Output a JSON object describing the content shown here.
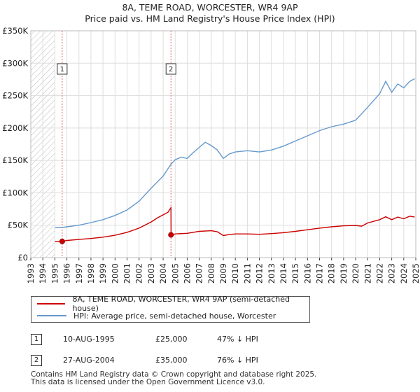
{
  "chart_data": {
    "type": "line",
    "title": "8A, TEME ROAD, WORCESTER, WR4 9AP",
    "subtitle": "Price paid vs. HM Land Registry's House Price Index (HPI)",
    "xlim": [
      1993,
      2025
    ],
    "ylim": [
      0,
      350000
    ],
    "x_ticks": [
      "1993",
      "1994",
      "1995",
      "1996",
      "1997",
      "1998",
      "1999",
      "2000",
      "2001",
      "2002",
      "2003",
      "2004",
      "2005",
      "2006",
      "2007",
      "2008",
      "2009",
      "2010",
      "2011",
      "2012",
      "2013",
      "2014",
      "2015",
      "2016",
      "2017",
      "2018",
      "2019",
      "2020",
      "2021",
      "2022",
      "2023",
      "2024",
      "2025"
    ],
    "y_ticks": [
      {
        "value": 0,
        "label": "£0"
      },
      {
        "value": 50000,
        "label": "£50K"
      },
      {
        "value": 100000,
        "label": "£100K"
      },
      {
        "value": 150000,
        "label": "£150K"
      },
      {
        "value": 200000,
        "label": "£200K"
      },
      {
        "value": 250000,
        "label": "£250K"
      },
      {
        "value": 300000,
        "label": "£300K"
      },
      {
        "value": 350000,
        "label": "£350K"
      }
    ],
    "hatched_until": 1995.0,
    "series": [
      {
        "name": "8A, TEME ROAD, WORCESTER, WR4 9AP (semi-detached house)",
        "color": "#cc0000",
        "x": [
          1995.0,
          1995.61,
          1996.0,
          1997.0,
          1998.0,
          1999.0,
          2000.0,
          2001.0,
          2002.0,
          2003.0,
          2003.5,
          2004.0,
          2004.4,
          2004.65,
          2004.66,
          2005.0,
          2006.0,
          2007.0,
          2008.0,
          2008.5,
          2009.0,
          2009.5,
          2010.0,
          2011.0,
          2012.0,
          2013.0,
          2014.0,
          2015.0,
          2016.0,
          2017.0,
          2018.0,
          2019.0,
          2020.0,
          2020.5,
          2021.0,
          2022.0,
          2022.5,
          2023.0,
          2023.5,
          2024.0,
          2024.5,
          2024.9
        ],
        "values": [
          25000,
          25000,
          26500,
          28000,
          29500,
          31500,
          34500,
          39000,
          45500,
          55000,
          61000,
          66000,
          70000,
          77000,
          35000,
          36500,
          37500,
          40500,
          41500,
          40000,
          34000,
          35500,
          36500,
          36500,
          36000,
          37000,
          38500,
          40500,
          43000,
          45500,
          47500,
          49000,
          49500,
          48500,
          53500,
          58500,
          63000,
          58500,
          62500,
          60000,
          64000,
          62500
        ]
      },
      {
        "name": "HPI: Average price, semi-detached house, Worcester",
        "color": "#6699cc",
        "x": [
          1995.0,
          1995.61,
          1996.0,
          1997.0,
          1998.0,
          1999.0,
          2000.0,
          2001.0,
          2002.0,
          2003.0,
          2004.0,
          2004.65,
          2005.0,
          2005.5,
          2006.0,
          2006.5,
          2007.0,
          2007.5,
          2008.0,
          2008.5,
          2009.0,
          2009.5,
          2010.0,
          2011.0,
          2012.0,
          2013.0,
          2014.0,
          2015.0,
          2016.0,
          2017.0,
          2018.0,
          2019.0,
          2020.0,
          2021.0,
          2022.0,
          2022.5,
          2023.0,
          2023.5,
          2024.0,
          2024.5,
          2024.9
        ],
        "values": [
          46000,
          46500,
          47500,
          50000,
          54000,
          58500,
          65000,
          73500,
          87000,
          107000,
          126000,
          144000,
          151000,
          155000,
          153000,
          162000,
          170000,
          178000,
          173000,
          166000,
          153000,
          160000,
          163000,
          165000,
          163000,
          166000,
          172000,
          180000,
          188000,
          196000,
          202000,
          206000,
          212000,
          232000,
          253000,
          272000,
          255000,
          268000,
          262000,
          272000,
          276000
        ]
      }
    ],
    "markers": [
      {
        "label": "1",
        "x": 1995.61,
        "y": 25000
      },
      {
        "label": "2",
        "x": 2004.65,
        "y": 35000
      }
    ],
    "legend": [
      "8A, TEME ROAD, WORCESTER, WR4 9AP (semi-detached house)",
      "HPI: Average price, semi-detached house, Worcester"
    ]
  },
  "transactions": [
    {
      "num": "1",
      "date": "10-AUG-1995",
      "price": "£25,000",
      "hpi": "47% ↓ HPI"
    },
    {
      "num": "2",
      "date": "27-AUG-2004",
      "price": "£35,000",
      "hpi": "76% ↓ HPI"
    }
  ],
  "footer": {
    "line1": "Contains HM Land Registry data © Crown copyright and database right 2025.",
    "line2": "This data is licensed under the Open Government Licence v3.0."
  }
}
